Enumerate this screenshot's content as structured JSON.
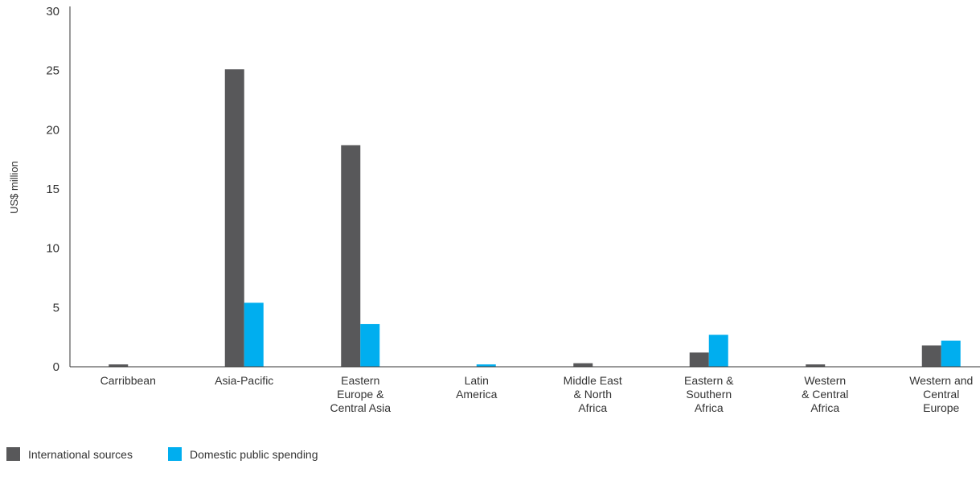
{
  "chart_data": {
    "type": "bar",
    "ylabel": "US$ million",
    "xlabel": "",
    "ylim": [
      0,
      30
    ],
    "yticks": [
      0,
      5,
      10,
      15,
      20,
      25,
      30
    ],
    "grid": false,
    "legend_position": "bottom-left",
    "categories": [
      [
        "Carribbean"
      ],
      [
        "Asia-Pacific"
      ],
      [
        "Eastern",
        "Europe &",
        "Central Asia"
      ],
      [
        "Latin",
        "America"
      ],
      [
        "Middle East",
        "& North",
        "Africa"
      ],
      [
        "Eastern &",
        "Southern",
        "Africa"
      ],
      [
        "Western",
        "& Central",
        "Africa"
      ],
      [
        "Western and",
        "Central",
        "Europe"
      ]
    ],
    "series": [
      {
        "name": "International sources",
        "color": "#58585a",
        "values": [
          0.2,
          25.1,
          18.7,
          0,
          0.3,
          1.2,
          0.2,
          1.8
        ]
      },
      {
        "name": "Domestic public spending",
        "color": "#00aeef",
        "values": [
          0,
          5.4,
          3.6,
          0.2,
          0,
          2.7,
          0,
          2.2
        ]
      }
    ]
  }
}
